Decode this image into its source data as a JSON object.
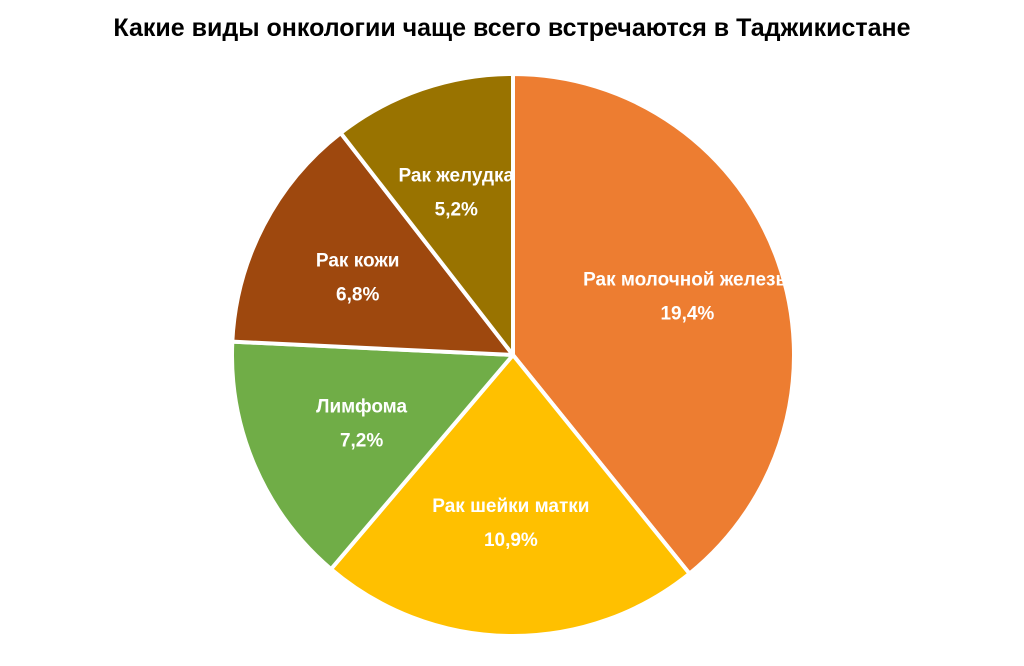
{
  "chart_data": {
    "type": "pie",
    "title": "Какие виды онкологии чаще всего встречаются в Таджикистане",
    "labels": [
      "Рак молочной железы",
      "Рак шейки матки",
      "Лимфома",
      "Рак кожи",
      "Рак желудка"
    ],
    "values": [
      19.4,
      10.9,
      7.2,
      6.8,
      5.2
    ],
    "value_labels": [
      "19,4%",
      "10,9%",
      "7,2%",
      "6,8%",
      "5,2%"
    ],
    "colors": [
      "#ED7D31",
      "#FFC000",
      "#70AD47",
      "#9E480E",
      "#997300"
    ],
    "start_angle": "12 o'clock",
    "direction": "clockwise",
    "legend": "none",
    "data_labels": "inside"
  }
}
